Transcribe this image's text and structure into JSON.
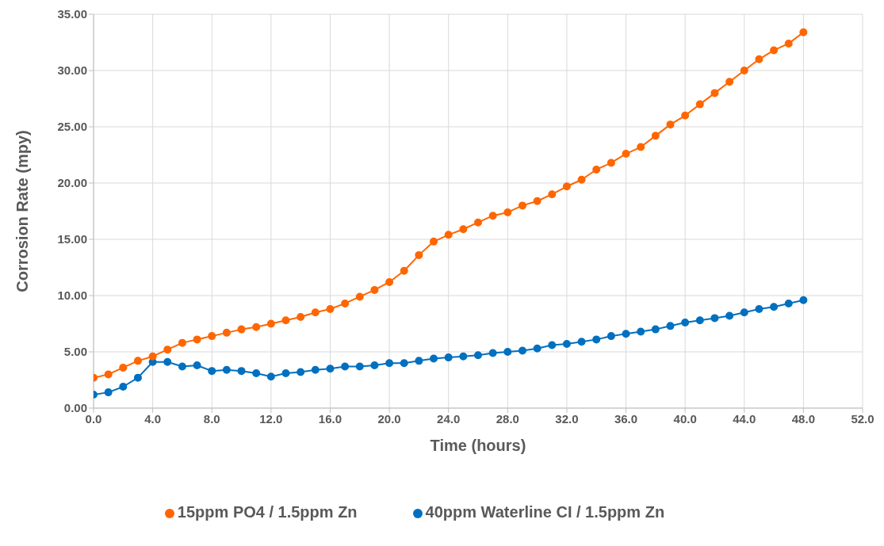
{
  "chart_data": {
    "type": "line",
    "xlabel": "Time (hours)",
    "ylabel": "Corrosion Rate (mpy)",
    "x": [
      0,
      1,
      2,
      3,
      4,
      5,
      6,
      7,
      8,
      9,
      10,
      11,
      12,
      13,
      14,
      15,
      16,
      17,
      18,
      19,
      20,
      21,
      22,
      23,
      24,
      25,
      26,
      27,
      28,
      29,
      30,
      31,
      32,
      33,
      34,
      35,
      36,
      37,
      38,
      39,
      40,
      41,
      42,
      43,
      44,
      45,
      46,
      47,
      48
    ],
    "series": [
      {
        "name": "40ppm Waterline CI / 1.5ppm Zn",
        "color": "#0070c0",
        "values": [
          1.2,
          1.4,
          1.9,
          2.7,
          4.1,
          4.1,
          3.7,
          3.8,
          3.3,
          3.4,
          3.3,
          3.1,
          2.8,
          3.1,
          3.2,
          3.4,
          3.5,
          3.7,
          3.7,
          3.8,
          4.0,
          4.0,
          4.2,
          4.4,
          4.5,
          4.6,
          4.7,
          4.9,
          5.0,
          5.1,
          5.3,
          5.6,
          5.7,
          5.9,
          6.1,
          6.4,
          6.6,
          6.8,
          7.0,
          7.3,
          7.6,
          7.8,
          8.0,
          8.2,
          8.5,
          8.8,
          9.0,
          9.3,
          9.6
        ]
      },
      {
        "name": "15ppm PO4 / 1.5ppm Zn",
        "color": "#ff6600",
        "values": [
          2.7,
          3.0,
          3.6,
          4.2,
          4.6,
          5.2,
          5.8,
          6.1,
          6.4,
          6.7,
          7.0,
          7.2,
          7.5,
          7.8,
          8.1,
          8.5,
          8.8,
          9.3,
          9.9,
          10.5,
          11.2,
          12.2,
          13.6,
          14.8,
          15.4,
          15.9,
          16.5,
          17.1,
          17.4,
          18.0,
          18.4,
          19.0,
          19.7,
          20.3,
          21.2,
          21.8,
          22.6,
          23.2,
          24.2,
          25.2,
          26.0,
          27.0,
          28.0,
          29.0,
          30.0,
          31.0,
          31.8,
          32.4,
          33.4
        ]
      }
    ],
    "xlim": [
      0,
      52
    ],
    "xticks": [
      {
        "value": 0,
        "label": "0.0"
      },
      {
        "value": 4,
        "label": "4.0"
      },
      {
        "value": 8,
        "label": "8.0"
      },
      {
        "value": 12,
        "label": "12.0"
      },
      {
        "value": 16,
        "label": "16.0"
      },
      {
        "value": 20,
        "label": "20.0"
      },
      {
        "value": 24,
        "label": "24.0"
      },
      {
        "value": 28,
        "label": "28.0"
      },
      {
        "value": 32,
        "label": "32.0"
      },
      {
        "value": 36,
        "label": "36.0"
      },
      {
        "value": 40,
        "label": "40.0"
      },
      {
        "value": 44,
        "label": "44.0"
      },
      {
        "value": 48,
        "label": "48.0"
      },
      {
        "value": 52,
        "label": "52.0"
      }
    ],
    "ylim": [
      0,
      35
    ],
    "yticks": [
      {
        "value": 0,
        "label": "0.00"
      },
      {
        "value": 5,
        "label": "5.00"
      },
      {
        "value": 10,
        "label": "10.00"
      },
      {
        "value": 15,
        "label": "15.00"
      },
      {
        "value": 20,
        "label": "20.00"
      },
      {
        "value": 25,
        "label": "25.00"
      },
      {
        "value": 30,
        "label": "30.00"
      },
      {
        "value": 35,
        "label": "35.00"
      }
    ],
    "grid": true,
    "legend": "bottom",
    "marker": "circle",
    "line_style": "solid"
  }
}
